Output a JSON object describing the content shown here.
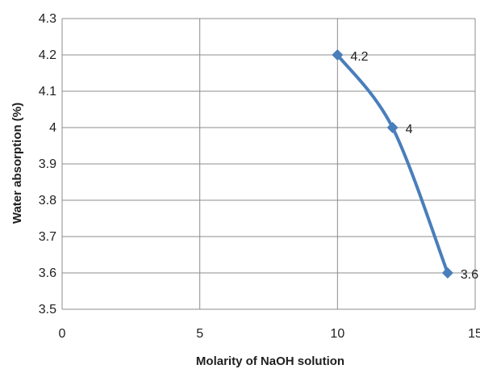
{
  "chart_data": {
    "type": "line",
    "title": "",
    "xlabel": "Molarity of NaOH solution",
    "ylabel": "Water absorption (%)",
    "xlim": [
      0,
      15
    ],
    "ylim": [
      3.5,
      4.3
    ],
    "xticks": [
      0,
      5,
      10,
      15
    ],
    "yticks": [
      3.5,
      3.6,
      3.7,
      3.8,
      3.9,
      4,
      4.1,
      4.2,
      4.3
    ],
    "xtick_labels": [
      "0",
      "5",
      "10",
      "15"
    ],
    "ytick_labels": [
      "3.5",
      "3.6",
      "3.7",
      "3.8",
      "3.9",
      "4",
      "4.1",
      "4.2",
      "4.3"
    ],
    "grid": true,
    "legend": "none",
    "series": [
      {
        "color": "#4a7ebb",
        "marker": "diamond",
        "smooth": true,
        "x": [
          10,
          12,
          14
        ],
        "y": [
          4.2,
          4.0,
          3.6
        ],
        "labels": [
          "4.2",
          "4",
          "3.6"
        ]
      }
    ]
  }
}
